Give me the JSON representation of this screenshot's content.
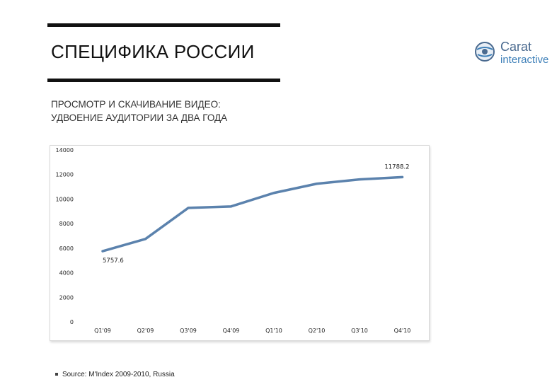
{
  "header": {
    "title": "СПЕЦИФИКА РОССИИ"
  },
  "logo": {
    "brand": "Carat",
    "sub": "interactive"
  },
  "subtitle": {
    "line1": "ПРОСМОТР И СКАЧИВАНИЕ ВИДЕО:",
    "line2": "УДВОЕНИЕ АУДИТОРИИ ЗА ДВА ГОДА"
  },
  "footer": {
    "source": "Source: M'Index 2009-2010, Russia"
  },
  "colors": {
    "series_line": "#5b82ad",
    "rule": "#111111",
    "brand_blue": "#3d7fb8"
  },
  "chart_data": {
    "type": "line",
    "categories": [
      "Q1'09",
      "Q2'09",
      "Q3'09",
      "Q4'09",
      "Q1'10",
      "Q2'10",
      "Q3'10",
      "Q4'10"
    ],
    "series": [
      {
        "values": [
          5757.6,
          6750,
          9280,
          9400,
          10500,
          11250,
          11600,
          11788.2
        ]
      }
    ],
    "data_labels": [
      {
        "index": 0,
        "text": "5757.6"
      },
      {
        "index": 7,
        "text": "11788.2"
      }
    ],
    "ylim": [
      0,
      14000
    ],
    "yticks": [
      0,
      2000,
      4000,
      6000,
      8000,
      10000,
      12000,
      14000
    ],
    "grid": false,
    "legend": "none"
  }
}
